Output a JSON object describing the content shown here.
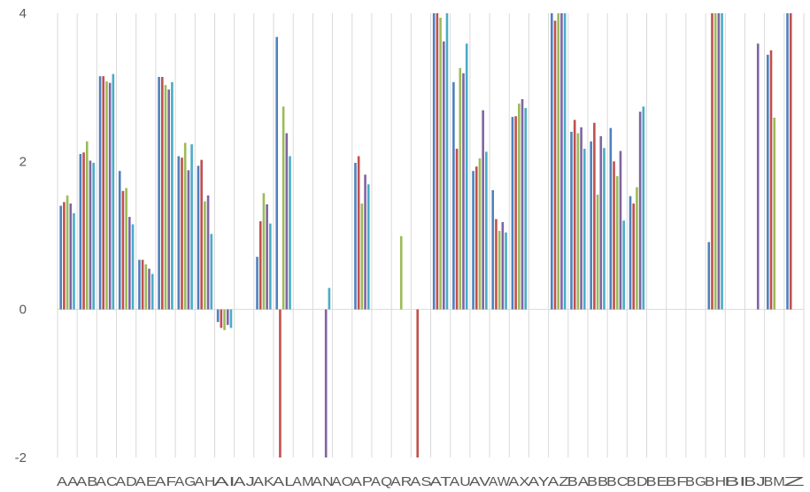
{
  "chart_data": {
    "type": "bar",
    "title": "",
    "xlabel": "",
    "ylabel": "",
    "ylim": [
      -2,
      4
    ],
    "yticks": [
      -2,
      0,
      2,
      4
    ],
    "grid": "vertical gridlines between categories, horizontal zero line",
    "legend": "none",
    "categories": [
      "AA",
      "AB",
      "AC",
      "AD",
      "AE",
      "AF",
      "AG",
      "AH",
      "AI",
      "AJ",
      "AK",
      "AL",
      "AM",
      "AN",
      "AO",
      "AP",
      "AQ",
      "AR",
      "AS",
      "AT",
      "AU",
      "AV",
      "AW",
      "AX",
      "AY",
      "AZ",
      "BA",
      "BB",
      "BC",
      "BD",
      "BE",
      "BF",
      "BG",
      "BH",
      "BI",
      "BJ",
      "BM",
      "Z"
    ],
    "colors": [
      "#4F81BD",
      "#C0504D",
      "#9BBB59",
      "#8064A2",
      "#4BACC6"
    ],
    "series": [
      {
        "values": [
          1.4,
          2.1,
          3.15,
          1.87,
          0.67,
          3.14,
          2.07,
          1.94,
          -0.17,
          null,
          0.71,
          3.68,
          null,
          null,
          null,
          1.98,
          null,
          null,
          null,
          4.2,
          3.07,
          1.87,
          1.61,
          2.6,
          null,
          4.2,
          2.4,
          2.27,
          2.45,
          1.53,
          null,
          null,
          null,
          0.91,
          null,
          null,
          3.44,
          4.0
        ]
      },
      {
        "values": [
          1.45,
          2.12,
          3.15,
          1.6,
          0.67,
          3.14,
          2.05,
          2.02,
          -0.25,
          null,
          1.19,
          -2.2,
          null,
          null,
          null,
          2.07,
          null,
          null,
          -2.2,
          4.2,
          2.17,
          1.93,
          1.22,
          2.61,
          null,
          3.9,
          2.56,
          2.52,
          2.0,
          1.43,
          null,
          null,
          null,
          4.2,
          null,
          null,
          3.5,
          4.2
        ]
      },
      {
        "values": [
          1.54,
          2.27,
          3.08,
          1.64,
          0.61,
          3.03,
          2.25,
          1.46,
          -0.28,
          null,
          1.57,
          2.74,
          null,
          null,
          null,
          1.43,
          null,
          0.99,
          null,
          3.94,
          3.26,
          2.04,
          1.06,
          2.78,
          null,
          4.2,
          2.38,
          1.55,
          1.8,
          1.65,
          null,
          null,
          null,
          4.2,
          null,
          null,
          2.59,
          null
        ]
      },
      {
        "values": [
          1.43,
          2.01,
          3.06,
          1.25,
          0.55,
          2.97,
          1.88,
          1.54,
          -0.21,
          null,
          1.42,
          2.38,
          null,
          -2.2,
          null,
          1.82,
          null,
          null,
          null,
          3.62,
          3.19,
          2.69,
          1.18,
          2.84,
          null,
          4.2,
          2.46,
          2.34,
          2.14,
          2.67,
          null,
          null,
          null,
          4.2,
          null,
          3.59,
          null,
          null
        ]
      },
      {
        "values": [
          1.3,
          1.98,
          3.18,
          1.15,
          0.48,
          3.07,
          2.23,
          1.02,
          -0.25,
          null,
          1.16,
          2.07,
          null,
          0.29,
          null,
          1.69,
          null,
          null,
          null,
          4.2,
          3.59,
          2.13,
          1.04,
          2.72,
          null,
          4.2,
          2.17,
          2.18,
          1.2,
          2.74,
          null,
          null,
          null,
          4.2,
          null,
          null,
          null,
          null
        ]
      }
    ]
  }
}
